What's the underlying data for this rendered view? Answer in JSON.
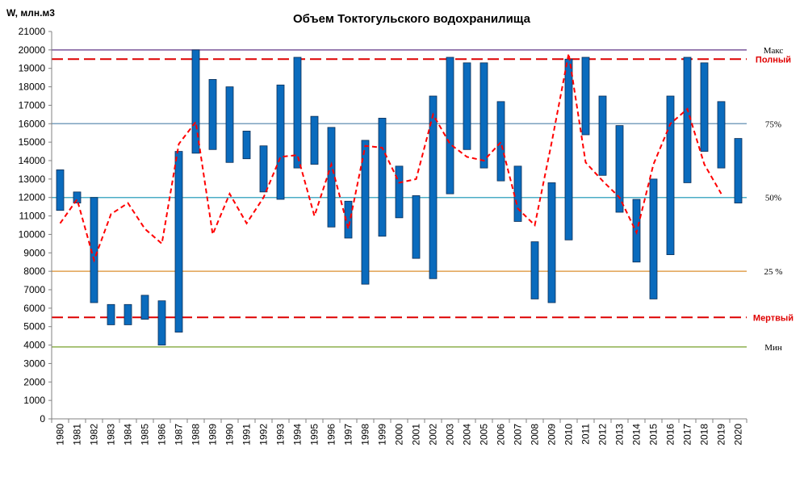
{
  "chart_data": {
    "type": "floating-bar-with-line",
    "title": "Объем Токтогульского  водохранилища",
    "ylabel": "W, млн.м3",
    "xlabel": "",
    "ylim": [
      0,
      21000
    ],
    "ytick_step": 1000,
    "grid": false,
    "categories": [
      "1980",
      "1981",
      "1982",
      "1983",
      "1984",
      "1985",
      "1986",
      "1987",
      "1988",
      "1989",
      "1990",
      "1991",
      "1992",
      "1993",
      "1994",
      "1995",
      "1996",
      "1997",
      "1998",
      "1999",
      "2000",
      "2001",
      "2002",
      "2003",
      "2004",
      "2005",
      "2006",
      "2007",
      "2008",
      "2009",
      "2010",
      "2011",
      "2012",
      "2013",
      "2014",
      "2015",
      "2016",
      "2017",
      "2018",
      "2019",
      "2020"
    ],
    "series": [
      {
        "type": "range-bar",
        "color": "#0a6bbd",
        "border": "#0b2d55",
        "low": [
          11300,
          11700,
          6300,
          5100,
          5100,
          5400,
          4000,
          4700,
          14400,
          14600,
          13900,
          14100,
          12300,
          11900,
          13600,
          13800,
          10400,
          9800,
          7300,
          9900,
          10900,
          8700,
          7600,
          12200,
          14600,
          13600,
          12900,
          10700,
          6500,
          6300,
          9700,
          15400,
          13200,
          11200,
          8500,
          6500,
          8900,
          12800,
          14500,
          13600,
          11700
        ],
        "high": [
          13500,
          12300,
          12000,
          6200,
          6200,
          6700,
          6400,
          14500,
          20000,
          18400,
          18000,
          15600,
          14800,
          18100,
          19600,
          16400,
          15800,
          11800,
          15100,
          16300,
          13700,
          12100,
          17500,
          19600,
          19300,
          19300,
          17200,
          13700,
          9600,
          12800,
          19500,
          19600,
          17500,
          15900,
          11900,
          13000,
          17500,
          19600,
          19300,
          17200,
          15200
        ]
      },
      {
        "type": "line",
        "style": "dashed",
        "color": "#ff0000",
        "values": [
          10600,
          11900,
          8600,
          11100,
          11700,
          10300,
          9500,
          14900,
          16100,
          10000,
          12200,
          10600,
          12000,
          14200,
          14300,
          11000,
          13800,
          10300,
          14800,
          14700,
          12800,
          13000,
          16500,
          14900,
          14200,
          14000,
          15000,
          11400,
          10500,
          15000,
          19800,
          13900,
          12900,
          12000,
          10100,
          13800,
          16000,
          16800,
          13800,
          12200,
          null
        ]
      }
    ],
    "reference_lines": [
      {
        "label": "Макс",
        "value": 20000,
        "color": "#7a559a",
        "style": "solid",
        "label_color": "#000000"
      },
      {
        "label": "Полный",
        "value": 19500,
        "color": "#dd0000",
        "style": "dashed",
        "label_color": "#e00000"
      },
      {
        "label": "75%",
        "value": 16000,
        "color": "#7ba1bf",
        "style": "solid",
        "label_color": "#000000"
      },
      {
        "label": "50%",
        "value": 12000,
        "color": "#4bacc6",
        "style": "solid",
        "label_color": "#000000"
      },
      {
        "label": "25 %",
        "value": 8000,
        "color": "#e0a050",
        "style": "solid",
        "label_color": "#000000"
      },
      {
        "label": "Мертвый",
        "value": 5500,
        "color": "#dd0000",
        "style": "dashed",
        "label_color": "#e00000"
      },
      {
        "label": "Мин",
        "value": 3900,
        "color": "#8eb04e",
        "style": "solid",
        "label_color": "#000000"
      }
    ]
  }
}
